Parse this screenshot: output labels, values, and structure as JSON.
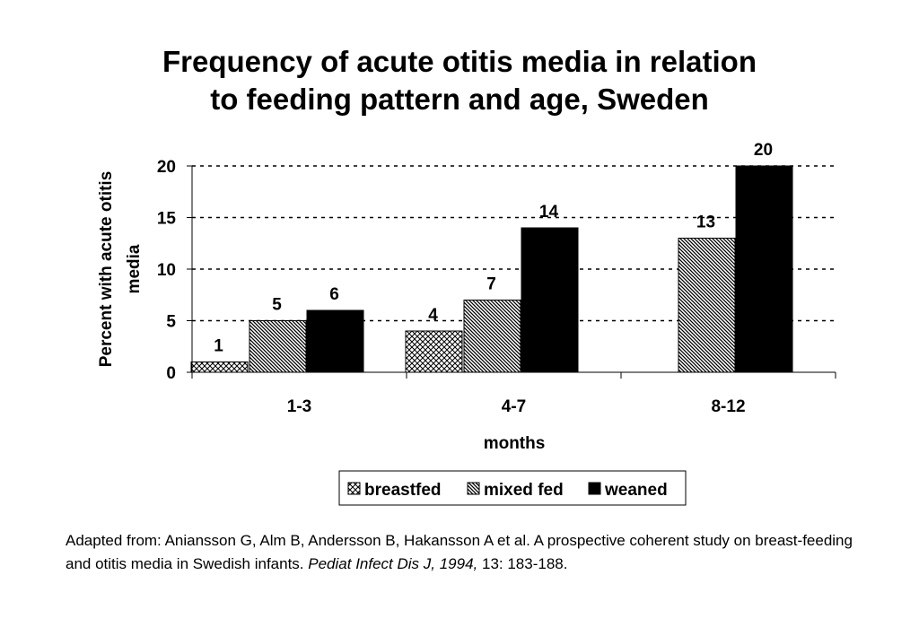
{
  "chart_data": {
    "type": "bar",
    "title_lines": [
      "Frequency of acute otitis media in relation",
      "to feeding pattern and age, Sweden"
    ],
    "categories": [
      "1-3",
      "4-7",
      "8-12"
    ],
    "series": [
      {
        "name": "breastfed",
        "values": [
          1,
          4,
          null
        ],
        "pattern": "crosshatch"
      },
      {
        "name": "mixed fed",
        "values": [
          5,
          7,
          13
        ],
        "pattern": "diagonal"
      },
      {
        "name": "weaned",
        "values": [
          6,
          14,
          20
        ],
        "pattern": "solid"
      }
    ],
    "data_labels": [
      [
        "1",
        "4",
        ""
      ],
      [
        "5",
        "7",
        "13"
      ],
      [
        "6",
        "14",
        "20"
      ]
    ],
    "ylabel_lines": [
      "Percent with acute otitis",
      "media"
    ],
    "xlabel": "months",
    "ylim": [
      0,
      20
    ],
    "yticks": [
      0,
      5,
      10,
      15,
      20
    ],
    "ytick_labels": [
      "0",
      "5",
      "10",
      "15",
      "20"
    ],
    "grid": "dashed horizontal",
    "legend": "bottom-center"
  },
  "caption": {
    "text_before": "Adapted from: Aniansson G, Alm B, Andersson B, Hakansson A et al. A prospective coherent study on breast-feeding and otitis media in Swedish infants.  ",
    "journal": "Pediat Infect Dis J, 1994,",
    "text_after": " 13: 183-188."
  },
  "colors": {
    "bar_fill": "#000000",
    "background": "#ffffff",
    "grid": "#000000"
  }
}
